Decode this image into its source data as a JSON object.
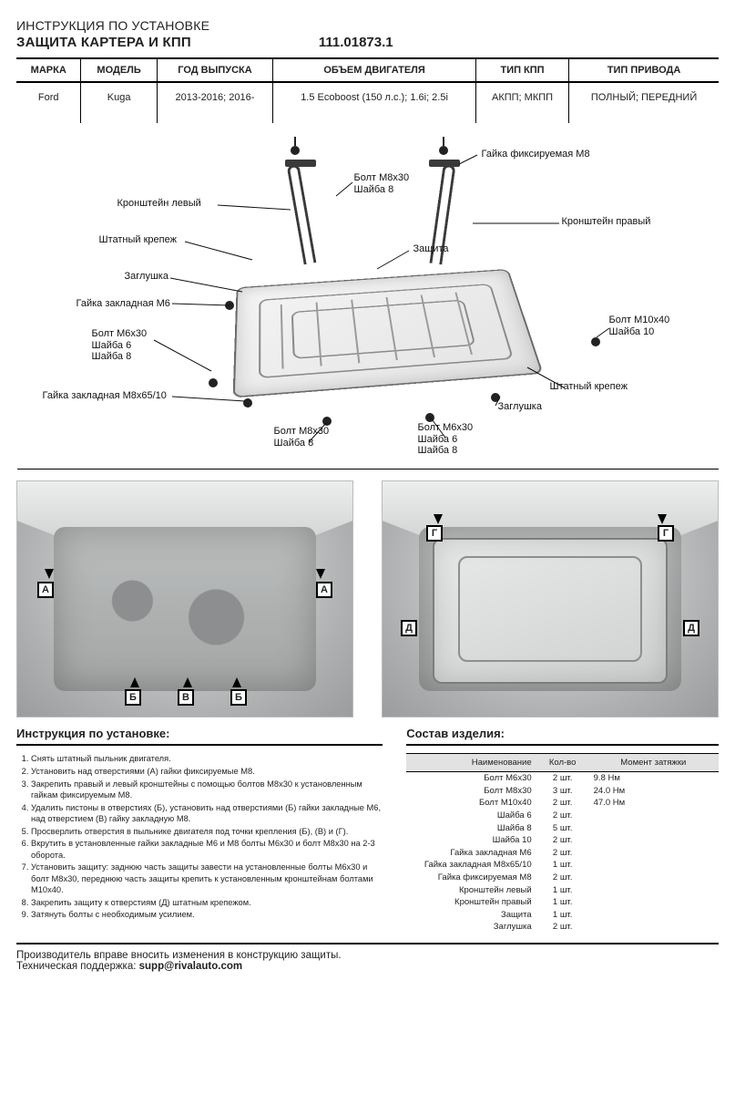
{
  "header": {
    "pretitle": "ИНСТРУКЦИЯ ПО УСТАНОВКЕ",
    "title": "ЗАЩИТА КАРТЕРА И КПП",
    "part_no": "111.01873.1"
  },
  "spec": {
    "columns": [
      "МАРКА",
      "МОДЕЛЬ",
      "ГОД ВЫПУСКА",
      "ОБЪЕМ ДВИГАТЕЛЯ",
      "ТИП КПП",
      "ТИП ПРИВОДА"
    ],
    "row": {
      "make": "Ford",
      "model": "Kuga",
      "year": "2013-2016; 2016-",
      "engine": "1.5 Ecoboost (150 л.с.); 1.6i; 2.5i",
      "gearbox": "АКПП; МКПП",
      "drive": "ПОЛНЫЙ; ПЕРЕДНИЙ"
    }
  },
  "diagram": {
    "labels": {
      "nut_m8": "Гайка фиксируемая M8",
      "bracket_l": "Кронштейн левый",
      "bracket_r": "Кронштейн правый",
      "bolt_m8x30": "Болт M8x30",
      "washer8": "Шайба 8",
      "stock_mount": "Штатный крепеж",
      "plug": "Заглушка",
      "nut_m6": "Гайка закладная M6",
      "bolt_m6x30": "Болт М6х30",
      "washer6": "Шайба 6",
      "nut_m8x65": "Гайка закладная M8x65/10",
      "protection": "Защита",
      "bolt_m10x40": "Болт М10x40",
      "washer10": "Шайба 10"
    }
  },
  "photomarks": {
    "A": "А",
    "B": "Б",
    "V": "В",
    "G": "Г",
    "D": "Д"
  },
  "instructions": {
    "heading": "Инструкция по установке:",
    "items": [
      "Снять штатный пыльник двигателя.",
      "Установить над отверстиями (А) гайки фиксируемые М8.",
      "Закрепить правый и левый кронштейны с помощью болтов М8х30 к установленным гайкам фиксируемым М8.",
      "Удалить пистоны в отверстиях (Б), установить над отверстиями (Б) гайки закладные М6, над отверстием (В) гайку закладную М8.",
      "Просверлить отверстия в пыльнике двигателя под точки крепления (Б), (В) и (Г).",
      "Вкрутить в установленные гайки закладные М6 и М8 болты М6х30 и болт М8х30 на 2-3 оборота.",
      "Установить защиту: заднюю часть защиты завести на установленные болты М6х30 и болт М8х30, переднюю часть защиты крепить к установленным кронштейнам болтами М10х40.",
      "Закрепить защиту к отверстиям (Д) штатным крепежом.",
      "Затянуть болты с необходимым усилием."
    ]
  },
  "bom": {
    "heading": "Состав изделия:",
    "columns": [
      "Наименование",
      "Кол-во",
      "Момент затяжки"
    ],
    "rows": [
      {
        "n": "Болт М6х30",
        "q": "2 шт.",
        "t": "9.8 Нм"
      },
      {
        "n": "Болт М8х30",
        "q": "3 шт.",
        "t": "24.0 Нм"
      },
      {
        "n": "Болт М10х40",
        "q": "2 шт.",
        "t": "47.0 Нм"
      },
      {
        "n": "Шайба 6",
        "q": "2 шт.",
        "t": ""
      },
      {
        "n": "Шайба 8",
        "q": "5 шт.",
        "t": ""
      },
      {
        "n": "Шайба 10",
        "q": "2 шт.",
        "t": ""
      },
      {
        "n": "Гайка закладная М6",
        "q": "2 шт.",
        "t": ""
      },
      {
        "n": "Гайка закладная М8х65/10",
        "q": "1 шт.",
        "t": ""
      },
      {
        "n": "Гайка фиксируемая М8",
        "q": "2 шт.",
        "t": ""
      },
      {
        "n": "Кронштейн левый",
        "q": "1 шт.",
        "t": ""
      },
      {
        "n": "Кронштейн правый",
        "q": "1 шт.",
        "t": ""
      },
      {
        "n": "Защита",
        "q": "1 шт.",
        "t": ""
      },
      {
        "n": "Заглушка",
        "q": "2 шт.",
        "t": ""
      }
    ]
  },
  "footer": {
    "disclaimer": "Производитель вправе вносить изменения в конструкцию защиты.",
    "support_label": "Техническая поддержка: ",
    "support_email": "supp@rivalauto.com"
  },
  "colors": {
    "text": "#222222",
    "rule": "#000000",
    "grey_bg": "#e2e2e2",
    "plate_fill": "#ececec",
    "plate_stroke": "#6b6b6b"
  }
}
